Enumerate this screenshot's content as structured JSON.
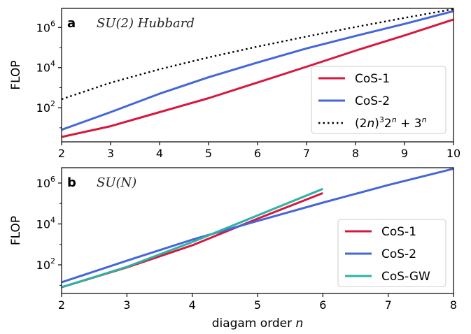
{
  "chart_data": [
    {
      "type": "line",
      "panel_label": "a",
      "title": "SU(2) Hubbard",
      "xlabel": "",
      "ylabel": "FLOP",
      "xlim": [
        2,
        10
      ],
      "ylim_log10": [
        0.3,
        6.95
      ],
      "yscale": "log",
      "x_ticks": [
        "2",
        "3",
        "4",
        "5",
        "6",
        "7",
        "8",
        "9",
        "10"
      ],
      "y_ticks": [
        {
          "value": 100,
          "base": "10",
          "exp": "2"
        },
        {
          "value": 10000,
          "base": "10",
          "exp": "4"
        },
        {
          "value": 1000000,
          "base": "10",
          "exp": "6"
        }
      ],
      "legend_position": "lower right",
      "series": [
        {
          "name": "CoS-1",
          "color": "#d6183f",
          "style": "solid",
          "x": [
            2,
            3,
            4,
            5,
            6,
            7,
            8,
            9,
            10
          ],
          "y": [
            3.5,
            12,
            60,
            300,
            1800,
            11000,
            70000,
            400000,
            2500000
          ]
        },
        {
          "name": "CoS-2",
          "color": "#4466d8",
          "style": "solid",
          "x": [
            2,
            3,
            4,
            5,
            6,
            7,
            8,
            9,
            10
          ],
          "y": [
            8,
            60,
            500,
            3300,
            18000,
            90000,
            380000,
            1500000,
            6500000
          ]
        },
        {
          "name_parts": [
            "(2",
            "n",
            ")",
            "3",
            "2",
            "n",
            " + 3",
            "n"
          ],
          "color": "#000000",
          "style": "dotted",
          "x": [
            2,
            3,
            4,
            5,
            6,
            7,
            8,
            9,
            10
          ],
          "y": [
            265,
            1755,
            8273,
            32243,
            111321,
            353063,
            1054113,
            3002175,
            8251049
          ]
        }
      ]
    },
    {
      "type": "line",
      "panel_label": "b",
      "title": "SU(N)",
      "xlabel_parts": [
        "diagam order ",
        "n"
      ],
      "ylabel": "FLOP",
      "xlim": [
        2,
        8
      ],
      "ylim_log10": [
        0.6,
        6.75
      ],
      "yscale": "log",
      "x_ticks": [
        "2",
        "3",
        "4",
        "5",
        "6",
        "7",
        "8"
      ],
      "y_ticks": [
        {
          "value": 100,
          "base": "10",
          "exp": "2"
        },
        {
          "value": 10000,
          "base": "10",
          "exp": "4"
        },
        {
          "value": 1000000,
          "base": "10",
          "exp": "6"
        }
      ],
      "legend_position": "lower right",
      "series": [
        {
          "name": "CoS-1",
          "color": "#d6183f",
          "style": "solid",
          "x": [
            2,
            3,
            4,
            5,
            6
          ],
          "y": [
            8,
            75,
            900,
            18000,
            320000
          ]
        },
        {
          "name": "CoS-2",
          "color": "#4466d8",
          "style": "solid",
          "x": [
            2,
            3,
            4,
            5,
            6,
            7,
            8
          ],
          "y": [
            14,
            160,
            1700,
            14000,
            110000,
            800000,
            5000000
          ]
        },
        {
          "name": "CoS-GW",
          "color": "#2bb3a3",
          "style": "solid",
          "x": [
            2,
            3,
            4,
            5,
            6
          ],
          "y": [
            8,
            80,
            1300,
            26000,
            520000
          ]
        }
      ]
    }
  ]
}
